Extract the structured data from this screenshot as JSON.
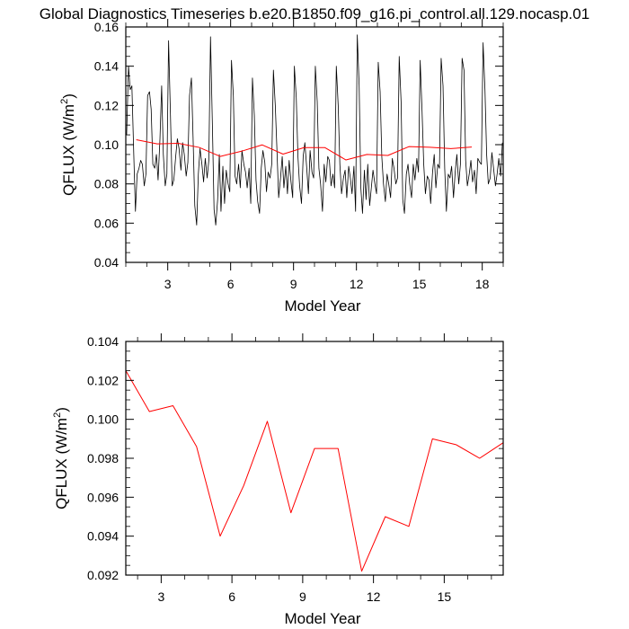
{
  "title": "Global Diagnostics Timeseries b.e20.B1850.f09_g16.pi_control.all.129.nocasp.01",
  "colors": {
    "monthly_line": "#000000",
    "annual_line": "#ff0000",
    "axis": "#000000"
  },
  "chart_data": [
    {
      "type": "line",
      "xlabel": "Model Year",
      "ylabel": "QFLUX (W/m",
      "ylabel_superscript": "2",
      "ylabel_close": ")",
      "xlim": [
        1,
        19
      ],
      "ylim": [
        0.04,
        0.16
      ],
      "xticks": [
        3,
        6,
        9,
        12,
        15,
        18
      ],
      "xtick_labels": [
        "3",
        "6",
        "9",
        "12",
        "15",
        "18"
      ],
      "yticks": [
        0.04,
        0.06,
        0.08,
        0.1,
        0.12,
        0.14,
        0.16
      ],
      "ytick_labels": [
        "0.04",
        "0.06",
        "0.08",
        "0.10",
        "0.12",
        "0.14",
        "0.16"
      ],
      "grid": false,
      "series": [
        {
          "style": "monthly",
          "x": [
            1.04,
            1.13,
            1.21,
            1.29,
            1.38,
            1.46,
            1.54,
            1.63,
            1.71,
            1.79,
            1.88,
            1.96,
            2.04,
            2.13,
            2.21,
            2.29,
            2.38,
            2.46,
            2.54,
            2.63,
            2.71,
            2.79,
            2.88,
            2.96,
            3.04,
            3.13,
            3.21,
            3.29,
            3.38,
            3.46,
            3.54,
            3.63,
            3.71,
            3.79,
            3.88,
            3.96,
            4.04,
            4.13,
            4.21,
            4.29,
            4.38,
            4.46,
            4.54,
            4.63,
            4.71,
            4.79,
            4.88,
            4.96,
            5.04,
            5.13,
            5.21,
            5.29,
            5.38,
            5.46,
            5.54,
            5.63,
            5.71,
            5.79,
            5.88,
            5.96,
            6.04,
            6.13,
            6.21,
            6.29,
            6.38,
            6.46,
            6.54,
            6.63,
            6.71,
            6.79,
            6.88,
            6.96,
            7.04,
            7.13,
            7.21,
            7.29,
            7.38,
            7.46,
            7.54,
            7.63,
            7.71,
            7.79,
            7.88,
            7.96,
            8.04,
            8.13,
            8.21,
            8.29,
            8.38,
            8.46,
            8.54,
            8.63,
            8.71,
            8.79,
            8.88,
            8.96,
            9.04,
            9.13,
            9.21,
            9.29,
            9.38,
            9.46,
            9.54,
            9.63,
            9.71,
            9.79,
            9.88,
            9.96,
            10.04,
            10.13,
            10.21,
            10.29,
            10.38,
            10.46,
            10.54,
            10.63,
            10.71,
            10.79,
            10.88,
            10.96,
            11.04,
            11.13,
            11.21,
            11.29,
            11.38,
            11.46,
            11.54,
            11.63,
            11.71,
            11.79,
            11.88,
            11.96,
            12.04,
            12.13,
            12.21,
            12.29,
            12.38,
            12.46,
            12.54,
            12.63,
            12.71,
            12.79,
            12.88,
            12.96,
            13.04,
            13.13,
            13.21,
            13.29,
            13.38,
            13.46,
            13.54,
            13.63,
            13.71,
            13.79,
            13.88,
            13.96,
            14.04,
            14.13,
            14.21,
            14.29,
            14.38,
            14.46,
            14.54,
            14.63,
            14.71,
            14.79,
            14.88,
            14.96,
            15.04,
            15.13,
            15.21,
            15.29,
            15.38,
            15.46,
            15.54,
            15.63,
            15.71,
            15.79,
            15.88,
            15.96,
            16.04,
            16.13,
            16.21,
            16.29,
            16.38,
            16.46,
            16.54,
            16.63,
            16.71,
            16.79,
            16.88,
            16.96,
            17.04,
            17.13,
            17.21,
            17.29,
            17.38,
            17.46,
            17.54,
            17.63,
            17.71,
            17.79,
            17.88,
            17.96,
            18.04,
            18.13,
            18.21,
            18.29,
            18.38,
            18.46,
            18.54,
            18.63,
            18.71,
            18.79,
            18.88,
            18.96
          ],
          "y": [
            0.105,
            0.14,
            0.128,
            0.13,
            0.095,
            0.066,
            0.085,
            0.088,
            0.092,
            0.09,
            0.079,
            0.085,
            0.125,
            0.127,
            0.118,
            0.09,
            0.088,
            0.095,
            0.082,
            0.103,
            0.13,
            0.095,
            0.079,
            0.085,
            0.153,
            0.115,
            0.079,
            0.082,
            0.094,
            0.103,
            0.098,
            0.087,
            0.101,
            0.095,
            0.084,
            0.091,
            0.125,
            0.134,
            0.103,
            0.069,
            0.059,
            0.085,
            0.098,
            0.09,
            0.081,
            0.093,
            0.083,
            0.092,
            0.155,
            0.11,
            0.067,
            0.059,
            0.072,
            0.095,
            0.066,
            0.089,
            0.07,
            0.087,
            0.08,
            0.076,
            0.143,
            0.125,
            0.084,
            0.08,
            0.09,
            0.078,
            0.097,
            0.09,
            0.086,
            0.078,
            0.088,
            0.07,
            0.134,
            0.115,
            0.082,
            0.071,
            0.065,
            0.088,
            0.097,
            0.091,
            0.076,
            0.086,
            0.083,
            0.09,
            0.138,
            0.12,
            0.097,
            0.073,
            0.083,
            0.094,
            0.078,
            0.089,
            0.075,
            0.092,
            0.081,
            0.073,
            0.14,
            0.124,
            0.094,
            0.079,
            0.07,
            0.094,
            0.101,
            0.088,
            0.075,
            0.097,
            0.086,
            0.083,
            0.14,
            0.122,
            0.088,
            0.08,
            0.066,
            0.09,
            0.081,
            0.094,
            0.092,
            0.079,
            0.085,
            0.078,
            0.14,
            0.12,
            0.09,
            0.075,
            0.083,
            0.087,
            0.073,
            0.089,
            0.083,
            0.075,
            0.089,
            0.066,
            0.156,
            0.13,
            0.078,
            0.065,
            0.087,
            0.072,
            0.09,
            0.069,
            0.078,
            0.087,
            0.08,
            0.075,
            0.142,
            0.127,
            0.094,
            0.08,
            0.071,
            0.085,
            0.08,
            0.073,
            0.093,
            0.088,
            0.08,
            0.083,
            0.145,
            0.122,
            0.072,
            0.065,
            0.085,
            0.09,
            0.08,
            0.073,
            0.09,
            0.082,
            0.093,
            0.086,
            0.143,
            0.117,
            0.09,
            0.075,
            0.084,
            0.082,
            0.07,
            0.086,
            0.095,
            0.078,
            0.09,
            0.088,
            0.144,
            0.13,
            0.088,
            0.066,
            0.085,
            0.083,
            0.089,
            0.073,
            0.086,
            0.095,
            0.08,
            0.09,
            0.144,
            0.138,
            0.092,
            0.079,
            0.085,
            0.092,
            0.081,
            0.087,
            0.075,
            0.093,
            0.091,
            0.09,
            0.152,
            0.128,
            0.095,
            0.08,
            0.083,
            0.096,
            0.088,
            0.079,
            0.085,
            0.093,
            0.084,
            0.101
          ]
        },
        {
          "style": "annual",
          "x": [
            1.5,
            2.5,
            3.5,
            4.5,
            5.5,
            6.5,
            7.5,
            8.5,
            9.5,
            10.5,
            11.5,
            12.5,
            13.5,
            14.5,
            15.5,
            16.5,
            17.5
          ],
          "y": [
            0.1025,
            0.1004,
            0.1007,
            0.0986,
            0.094,
            0.0966,
            0.0999,
            0.0952,
            0.0985,
            0.0985,
            0.0922,
            0.095,
            0.0945,
            0.099,
            0.0987,
            0.098,
            0.0988
          ]
        }
      ]
    },
    {
      "type": "line",
      "xlabel": "Model Year",
      "ylabel": "QFLUX (W/m",
      "ylabel_superscript": "2",
      "ylabel_close": ")",
      "xlim": [
        1.5,
        17.5
      ],
      "ylim": [
        0.092,
        0.104
      ],
      "xticks": [
        3,
        6,
        9,
        12,
        15
      ],
      "xtick_labels": [
        "3",
        "6",
        "9",
        "12",
        "15"
      ],
      "yticks": [
        0.092,
        0.094,
        0.096,
        0.098,
        0.1,
        0.102,
        0.104
      ],
      "ytick_labels": [
        "0.092",
        "0.094",
        "0.096",
        "0.098",
        "0.100",
        "0.102",
        "0.104"
      ],
      "grid": false,
      "series": [
        {
          "style": "annual",
          "x": [
            1.5,
            2.5,
            3.5,
            4.5,
            5.5,
            6.5,
            7.5,
            8.5,
            9.5,
            10.5,
            11.5,
            12.5,
            13.5,
            14.5,
            15.5,
            16.5,
            17.5
          ],
          "y": [
            0.1025,
            0.1004,
            0.1007,
            0.0986,
            0.094,
            0.0966,
            0.0999,
            0.0952,
            0.0985,
            0.0985,
            0.0922,
            0.095,
            0.0945,
            0.099,
            0.0987,
            0.098,
            0.0988
          ]
        }
      ]
    }
  ]
}
